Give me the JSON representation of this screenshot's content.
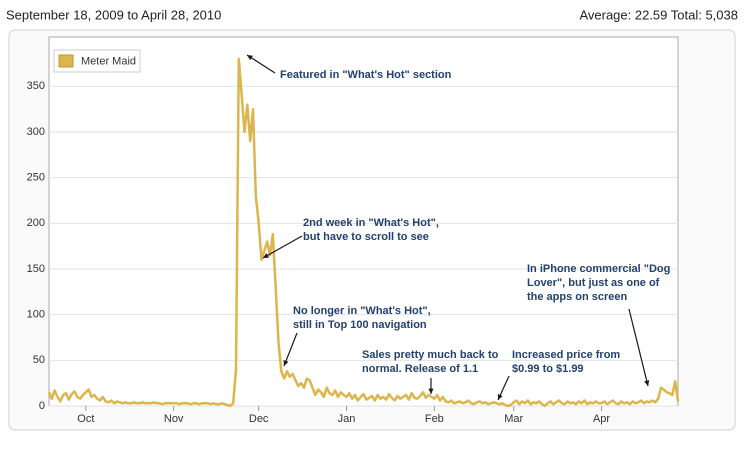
{
  "chart_data": {
    "type": "line",
    "title": "September 18, 2009 to April 28, 2010",
    "summary": "Average: 22.59  Total: 5,038",
    "series": [
      {
        "name": "Meter Maid",
        "color": "#dcb54c",
        "values": [
          15,
          8,
          17,
          10,
          5,
          12,
          14,
          7,
          13,
          16,
          10,
          8,
          12,
          15,
          18,
          10,
          12,
          8,
          6,
          10,
          5,
          4,
          6,
          3,
          5,
          4,
          3,
          4,
          3,
          3,
          4,
          3,
          3,
          4,
          3,
          3,
          3,
          4,
          3,
          3,
          2,
          3,
          3,
          3,
          3,
          3,
          2,
          3,
          3,
          3,
          2,
          3,
          3,
          2,
          3,
          3,
          3,
          2,
          3,
          2,
          2,
          3,
          2,
          1,
          0,
          3,
          40,
          380,
          340,
          300,
          330,
          290,
          325,
          230,
          200,
          160,
          170,
          180,
          165,
          188,
          130,
          70,
          38,
          30,
          38,
          32,
          35,
          28,
          22,
          25,
          20,
          30,
          28,
          20,
          12,
          18,
          15,
          10,
          20,
          14,
          12,
          17,
          10,
          15,
          12,
          10,
          14,
          8,
          12,
          6,
          10,
          13,
          7,
          9,
          11,
          6,
          12,
          8,
          10,
          7,
          13,
          9,
          6,
          11,
          8,
          10,
          12,
          7,
          14,
          9,
          8,
          11,
          15,
          9,
          12,
          10,
          8,
          12,
          6,
          10,
          5,
          4,
          6,
          3,
          4,
          5,
          3,
          4,
          6,
          3,
          2,
          4,
          5,
          3,
          4,
          2,
          3,
          4,
          3,
          2,
          3,
          1,
          0,
          1,
          4,
          6,
          2,
          5,
          3,
          6,
          2,
          4,
          3,
          5,
          2,
          0,
          3,
          5,
          2,
          4,
          6,
          3,
          2,
          5,
          3,
          4,
          2,
          5,
          3,
          6,
          2,
          4,
          3,
          5,
          3,
          3,
          5,
          2,
          4,
          6,
          3,
          2,
          5,
          3,
          4,
          2,
          5,
          3,
          4,
          6,
          3,
          5,
          4,
          6,
          4,
          8,
          20,
          18,
          15,
          14,
          12,
          27,
          5
        ]
      }
    ],
    "xlim": [
      0,
      222
    ],
    "xticks": [
      {
        "value": 13,
        "label": "Oct"
      },
      {
        "value": 44,
        "label": "Nov"
      },
      {
        "value": 74,
        "label": "Dec"
      },
      {
        "value": 105,
        "label": "Jan"
      },
      {
        "value": 136,
        "label": "Feb"
      },
      {
        "value": 164,
        "label": "Mar"
      },
      {
        "value": 195,
        "label": "Apr"
      }
    ],
    "ylim": [
      0,
      404
    ],
    "yticks": [
      0,
      50,
      100,
      150,
      200,
      250,
      300,
      350
    ],
    "grid": true,
    "legend": "top-left",
    "annotations": [
      {
        "lines": [
          "Featured in \"What's Hot\" section"
        ]
      },
      {
        "lines": [
          "2nd week in \"What's Hot\",",
          "but have to scroll to see"
        ]
      },
      {
        "lines": [
          "No longer in \"What's Hot\",",
          "still in Top 100 navigation"
        ]
      },
      {
        "lines": [
          "Sales pretty much back to",
          "normal. Release of 1.1"
        ]
      },
      {
        "lines": [
          "Increased price from",
          "$0.99 to $1.99"
        ]
      },
      {
        "lines": [
          "In iPhone commercial \"Dog",
          "Lover\", but just as one of",
          "the apps on screen"
        ]
      }
    ]
  }
}
